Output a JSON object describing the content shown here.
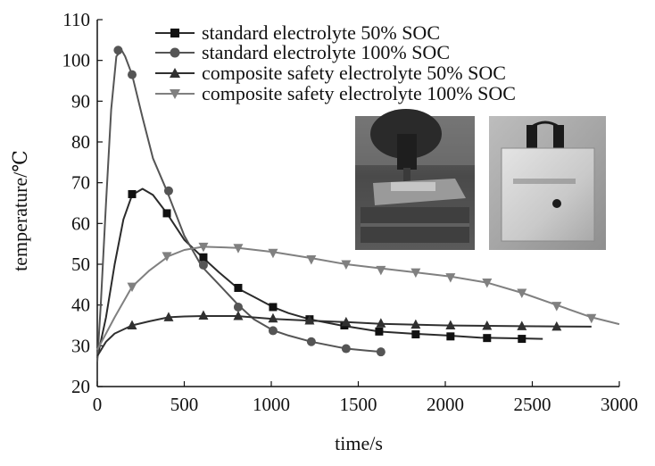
{
  "chart_data": {
    "type": "line",
    "xlabel": "time/s",
    "ylabel": "temperature/℃",
    "xlim": [
      0,
      3000
    ],
    "ylim": [
      20,
      110
    ],
    "x_ticks": [
      "0",
      "500",
      "1000",
      "1500",
      "2000",
      "2500",
      "3000"
    ],
    "y_ticks": [
      "20",
      "30",
      "40",
      "50",
      "60",
      "70",
      "80",
      "90",
      "100",
      "110"
    ],
    "grid": false,
    "legend_position": "top-right",
    "series": [
      {
        "name": "standard electrolyte 50% SOC",
        "marker": "square",
        "color": "#2b2b2b",
        "line": [
          [
            0,
            27
          ],
          [
            50,
            37
          ],
          [
            100,
            50
          ],
          [
            150,
            61
          ],
          [
            200,
            67
          ],
          [
            260,
            68.5
          ],
          [
            320,
            67
          ],
          [
            400,
            62.5
          ],
          [
            500,
            56
          ],
          [
            610,
            51.5
          ],
          [
            700,
            48
          ],
          [
            810,
            44
          ],
          [
            900,
            42
          ],
          [
            1010,
            39.5
          ],
          [
            1100,
            38
          ],
          [
            1220,
            36.5
          ],
          [
            1400,
            35
          ],
          [
            1620,
            33.5
          ],
          [
            1800,
            33
          ],
          [
            2020,
            32.5
          ],
          [
            2200,
            32
          ],
          [
            2450,
            31.8
          ],
          [
            2560,
            31.7
          ]
        ],
        "markers": [
          [
            200,
            67.2
          ],
          [
            400,
            62.5
          ],
          [
            610,
            51.7
          ],
          [
            810,
            44.2
          ],
          [
            1010,
            39.5
          ],
          [
            1220,
            36.5
          ],
          [
            1420,
            35
          ],
          [
            1620,
            33.5
          ],
          [
            1830,
            32.8
          ],
          [
            2030,
            32.3
          ],
          [
            2240,
            31.9
          ],
          [
            2440,
            31.7
          ]
        ]
      },
      {
        "name": "standard electrolyte 100% SOC",
        "marker": "circle",
        "color": "#555555",
        "line": [
          [
            0,
            26
          ],
          [
            20,
            40
          ],
          [
            50,
            65
          ],
          [
            80,
            88
          ],
          [
            110,
            101
          ],
          [
            140,
            102.5
          ],
          [
            160,
            101
          ],
          [
            200,
            96.5
          ],
          [
            260,
            86
          ],
          [
            320,
            76
          ],
          [
            400,
            68
          ],
          [
            500,
            57
          ],
          [
            600,
            49.5
          ],
          [
            700,
            45
          ],
          [
            810,
            40
          ],
          [
            900,
            36.5
          ],
          [
            1010,
            33.8
          ],
          [
            1100,
            32.5
          ],
          [
            1230,
            31
          ],
          [
            1430,
            29.3
          ],
          [
            1550,
            28.8
          ],
          [
            1640,
            28.5
          ]
        ],
        "markers": [
          [
            120,
            102.5
          ],
          [
            200,
            96.5
          ],
          [
            410,
            68
          ],
          [
            610,
            49.8
          ],
          [
            810,
            39.5
          ],
          [
            1010,
            33.7
          ],
          [
            1230,
            31
          ],
          [
            1430,
            29.3
          ],
          [
            1630,
            28.5
          ]
        ]
      },
      {
        "name": "composite safety electrolyte 50% SOC",
        "marker": "triangle-up",
        "color": "#303030",
        "line": [
          [
            0,
            27.5
          ],
          [
            50,
            31
          ],
          [
            100,
            33
          ],
          [
            200,
            35
          ],
          [
            300,
            36
          ],
          [
            410,
            37
          ],
          [
            500,
            37.2
          ],
          [
            610,
            37.3
          ],
          [
            800,
            37.3
          ],
          [
            1010,
            36.6
          ],
          [
            1200,
            36.2
          ],
          [
            1430,
            35.8
          ],
          [
            1630,
            35.4
          ],
          [
            2000,
            35
          ],
          [
            2440,
            34.8
          ],
          [
            2840,
            34.7
          ]
        ],
        "markers": [
          [
            200,
            35
          ],
          [
            410,
            37
          ],
          [
            610,
            37.4
          ],
          [
            810,
            37.3
          ],
          [
            1010,
            36.7
          ],
          [
            1220,
            36.2
          ],
          [
            1430,
            35.8
          ],
          [
            1630,
            35.5
          ],
          [
            1830,
            35.2
          ],
          [
            2030,
            35
          ],
          [
            2240,
            34.9
          ],
          [
            2440,
            34.8
          ],
          [
            2640,
            34.7
          ]
        ]
      },
      {
        "name": "composite safety electrolyte 100% SOC",
        "marker": "triangle-down",
        "color": "#808080",
        "line": [
          [
            0,
            29
          ],
          [
            50,
            33
          ],
          [
            100,
            37
          ],
          [
            200,
            44.5
          ],
          [
            300,
            48.5
          ],
          [
            410,
            52
          ],
          [
            500,
            53.5
          ],
          [
            610,
            54.3
          ],
          [
            810,
            54
          ],
          [
            1010,
            53
          ],
          [
            1230,
            51.5
          ],
          [
            1430,
            50
          ],
          [
            1630,
            49
          ],
          [
            1830,
            48
          ],
          [
            2030,
            47
          ],
          [
            2240,
            45.5
          ],
          [
            2440,
            43
          ],
          [
            2640,
            40
          ],
          [
            2840,
            37
          ],
          [
            3000,
            35.3
          ]
        ],
        "markers": [
          [
            200,
            44.5
          ],
          [
            400,
            52
          ],
          [
            610,
            54.3
          ],
          [
            810,
            54
          ],
          [
            1010,
            52.8
          ],
          [
            1230,
            51.2
          ],
          [
            1430,
            50
          ],
          [
            1630,
            48.6
          ],
          [
            1830,
            48
          ],
          [
            2030,
            46.8
          ],
          [
            2240,
            45.5
          ],
          [
            2440,
            43
          ],
          [
            2640,
            39.8
          ],
          [
            2840,
            36.8
          ]
        ]
      }
    ]
  },
  "inset_photos": [
    {
      "icon": "nail-penetration-photo",
      "label": ""
    },
    {
      "icon": "pouch-cell-after-test-photo",
      "label": ""
    }
  ]
}
